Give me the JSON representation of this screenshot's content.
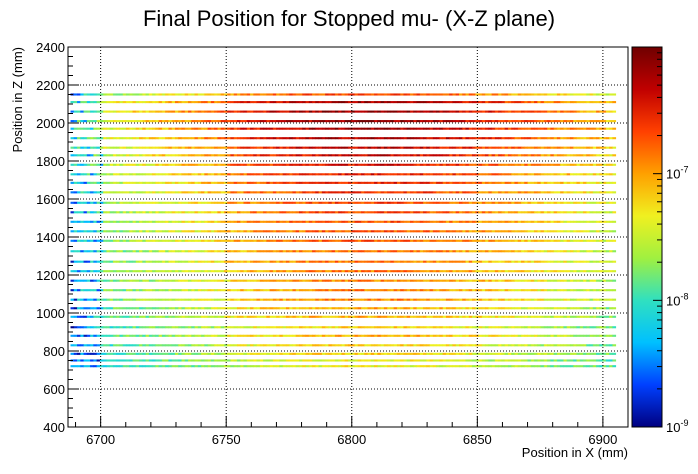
{
  "chart_data": {
    "type": "heatmap",
    "title": "Final Position for Stopped mu- (X-Z plane)",
    "xlabel": "Position in X (mm)",
    "ylabel": "Position in Z (mm)",
    "xlim": [
      6687,
      6910
    ],
    "ylim": [
      400,
      2400
    ],
    "x_ticks": [
      6700,
      6750,
      6800,
      6850,
      6900
    ],
    "x_tick_labels": [
      "6700",
      "6750",
      "6800",
      "6850",
      "6900"
    ],
    "y_ticks": [
      400,
      600,
      800,
      1000,
      1200,
      1400,
      1600,
      1800,
      2000,
      2200,
      2400
    ],
    "y_tick_labels": [
      "400",
      "600",
      "800",
      "1000",
      "1200",
      "1400",
      "1600",
      "1800",
      "2000",
      "2200",
      "2400"
    ],
    "grid": true,
    "color_scale": "log",
    "zlim": [
      1e-09,
      1e-06
    ],
    "colorbar_ticks": [
      {
        "base": "10",
        "exp": "-9",
        "value": 1e-09
      },
      {
        "base": "10",
        "exp": "-8",
        "value": 1e-08
      },
      {
        "base": "10",
        "exp": "-7",
        "value": 1e-07
      }
    ],
    "colormap": [
      "#000080",
      "#0040ff",
      "#00c0ff",
      "#30e0c0",
      "#a0f040",
      "#f0f020",
      "#ffa000",
      "#ff4000",
      "#c00000",
      "#700000"
    ],
    "data_region": {
      "x": [
        6688,
        6905
      ],
      "z": [
        710,
        2180
      ]
    },
    "z_bands": [
      {
        "z_center": 720,
        "intensity": 0.55
      },
      {
        "z_center": 750,
        "intensity": 0.55
      },
      {
        "z_center": 785,
        "intensity": 0.6
      },
      {
        "z_center": 830,
        "intensity": 0.6
      },
      {
        "z_center": 880,
        "intensity": 0.65
      },
      {
        "z_center": 925,
        "intensity": 0.6
      },
      {
        "z_center": 980,
        "intensity": 0.65
      },
      {
        "z_center": 1025,
        "intensity": 0.65
      },
      {
        "z_center": 1070,
        "intensity": 0.7
      },
      {
        "z_center": 1120,
        "intensity": 0.7
      },
      {
        "z_center": 1170,
        "intensity": 0.7
      },
      {
        "z_center": 1220,
        "intensity": 0.72
      },
      {
        "z_center": 1270,
        "intensity": 0.72
      },
      {
        "z_center": 1325,
        "intensity": 0.72
      },
      {
        "z_center": 1380,
        "intensity": 0.75
      },
      {
        "z_center": 1430,
        "intensity": 0.75
      },
      {
        "z_center": 1480,
        "intensity": 0.76
      },
      {
        "z_center": 1530,
        "intensity": 0.78
      },
      {
        "z_center": 1580,
        "intensity": 0.78
      },
      {
        "z_center": 1635,
        "intensity": 0.8
      },
      {
        "z_center": 1685,
        "intensity": 0.82
      },
      {
        "z_center": 1730,
        "intensity": 0.84
      },
      {
        "z_center": 1780,
        "intensity": 0.86
      },
      {
        "z_center": 1830,
        "intensity": 0.88
      },
      {
        "z_center": 1870,
        "intensity": 0.9
      },
      {
        "z_center": 1920,
        "intensity": 0.92
      },
      {
        "z_center": 1970,
        "intensity": 0.94
      },
      {
        "z_center": 2010,
        "intensity": 0.95
      },
      {
        "z_center": 2060,
        "intensity": 0.95
      },
      {
        "z_center": 2110,
        "intensity": 0.93
      },
      {
        "z_center": 2150,
        "intensity": 0.78
      }
    ]
  }
}
